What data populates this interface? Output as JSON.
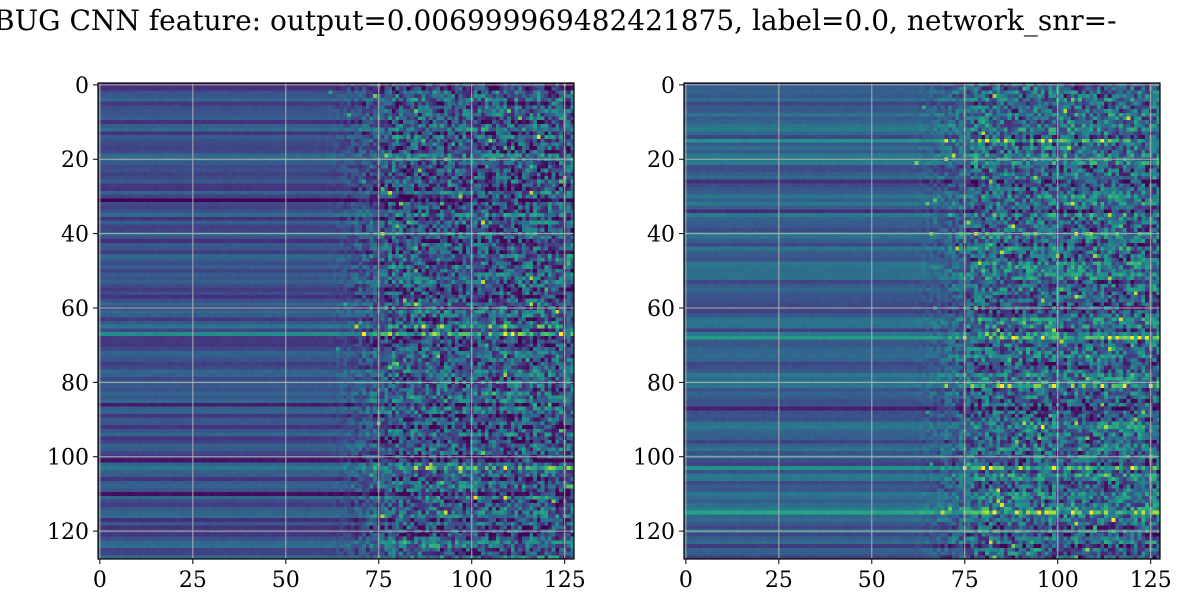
{
  "figure": {
    "title": "BUG CNN feature: output=0.006999969482421875, label=0.0, network_snr=-"
  },
  "colors": {
    "colormap": [
      "#440154",
      "#472d7b",
      "#3b528b",
      "#2c728e",
      "#21918c",
      "#28ae80",
      "#5ec962",
      "#addc30",
      "#fde725"
    ],
    "grid": "#b0b0b0",
    "axis": "#000000"
  },
  "chart_data": [
    {
      "type": "heatmap",
      "colormap": "viridis",
      "rows": 128,
      "cols": 128,
      "xlim": [
        0,
        127
      ],
      "ylim": [
        127,
        0
      ],
      "xticks": [
        0,
        25,
        50,
        75,
        100,
        125
      ],
      "yticks": [
        0,
        20,
        40,
        60,
        80,
        100,
        120
      ],
      "grid": true,
      "base_level": 0.24,
      "noise_onset_col": 75,
      "bright_rows": [
        65,
        67,
        103
      ],
      "dark_rows": [
        17,
        31,
        42,
        57,
        68,
        86,
        101,
        110
      ]
    },
    {
      "type": "heatmap",
      "colormap": "viridis",
      "rows": 128,
      "cols": 128,
      "xlim": [
        0,
        127
      ],
      "ylim": [
        127,
        0
      ],
      "xticks": [
        0,
        25,
        50,
        75,
        100,
        125
      ],
      "yticks": [
        0,
        20,
        40,
        60,
        80,
        100,
        120
      ],
      "grid": true,
      "base_level": 0.3,
      "noise_onset_col": 75,
      "bright_rows": [
        15,
        40,
        68,
        81,
        103,
        115
      ],
      "dark_rows": [
        26,
        34,
        58,
        76,
        87,
        124
      ]
    }
  ]
}
